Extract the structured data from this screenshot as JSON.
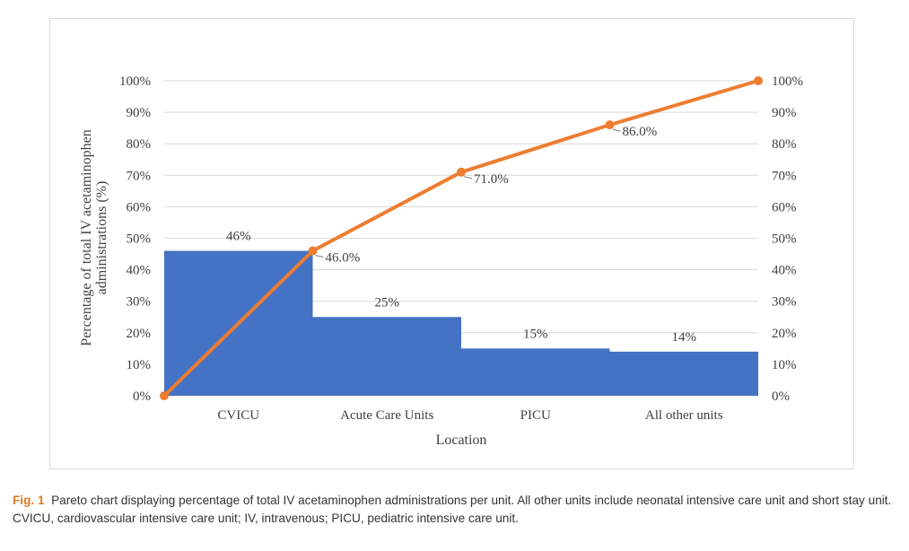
{
  "caption": {
    "label": "Fig. 1",
    "text": "Pareto chart displaying percentage of total IV acetaminophen administrations per unit. All other units include neonatal intensive care unit and short stay unit. CVICU, cardiovascular intensive care unit; IV, intravenous; PICU, pediatric intensive care unit."
  },
  "chart_data": {
    "type": "bar",
    "categories": [
      "CVICU",
      "Acute Care Units",
      "PICU",
      "All other units"
    ],
    "values": [
      46,
      25,
      15,
      14
    ],
    "value_labels": [
      "46%",
      "25%",
      "15%",
      "14%"
    ],
    "cumulative": {
      "x": [
        "0",
        "CVICU",
        "Acute Care Units",
        "PICU",
        "All other units"
      ],
      "values": [
        0,
        46,
        71,
        86,
        100
      ],
      "point_labels": [
        "",
        "46.0%",
        "71.0%",
        "86.0%",
        ""
      ]
    },
    "xlabel": "Location",
    "ylabel_lines": [
      "Percentage of total IV acetaminophen",
      "administrations (%)"
    ],
    "ylim": [
      0,
      100
    ],
    "yticks": [
      "0%",
      "10%",
      "20%",
      "30%",
      "40%",
      "50%",
      "60%",
      "70%",
      "80%",
      "90%",
      "100%"
    ],
    "y2ticks": [
      "0%",
      "10%",
      "20%",
      "30%",
      "40%",
      "50%",
      "60%",
      "70%",
      "80%",
      "90%",
      "100%"
    ],
    "grid": true,
    "colors": {
      "bar": "#4472c4",
      "line": "#ed7d31",
      "grid": "#d9d9d9",
      "text": "#404040"
    }
  }
}
